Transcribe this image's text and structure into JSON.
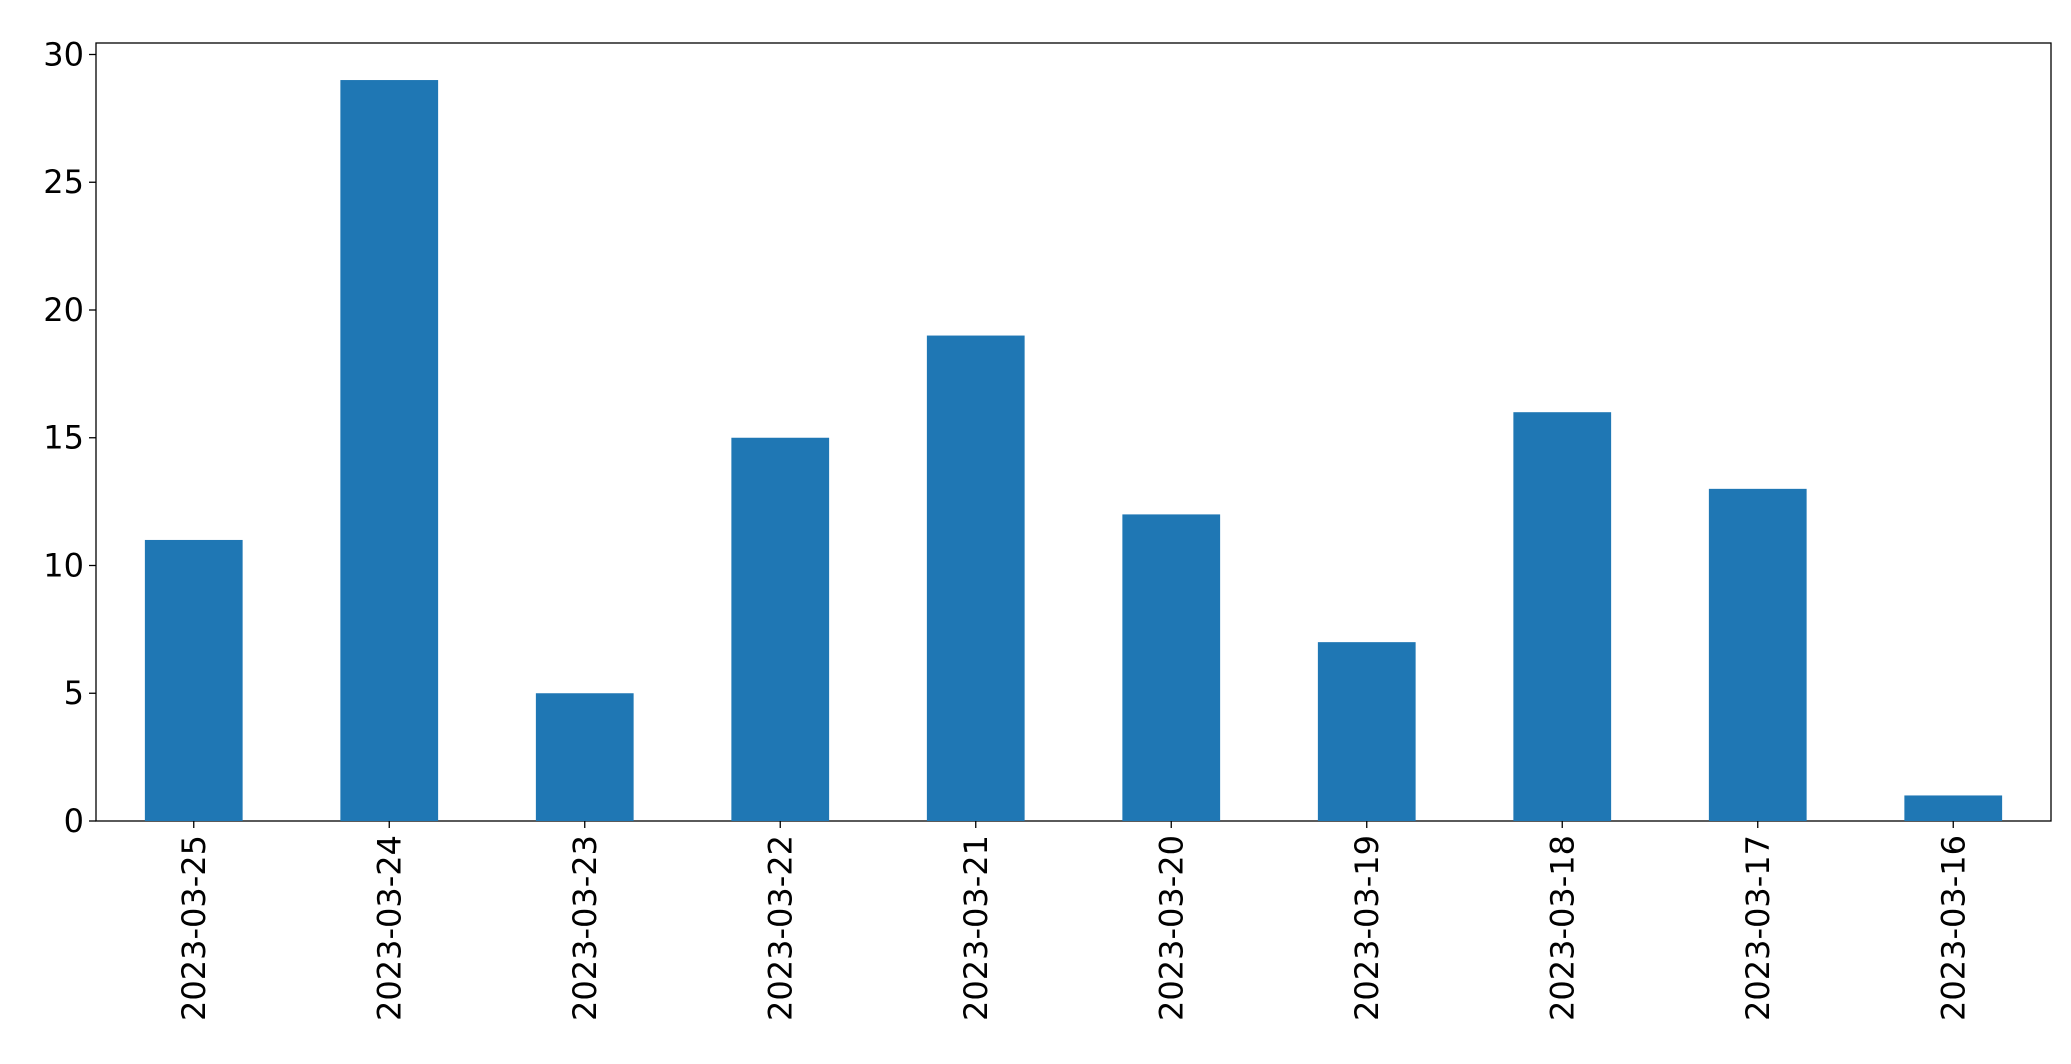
{
  "chart_data": {
    "type": "bar",
    "categories": [
      "2023-03-25",
      "2023-03-24",
      "2023-03-23",
      "2023-03-22",
      "2023-03-21",
      "2023-03-20",
      "2023-03-19",
      "2023-03-18",
      "2023-03-17",
      "2023-03-16"
    ],
    "values": [
      11,
      29,
      5,
      15,
      19,
      12,
      7,
      16,
      13,
      1
    ],
    "color": "#1f77b4",
    "ylim": [
      0,
      30.45
    ],
    "yticks": [
      0,
      5,
      10,
      15,
      20,
      25,
      30
    ],
    "grid": false
  }
}
